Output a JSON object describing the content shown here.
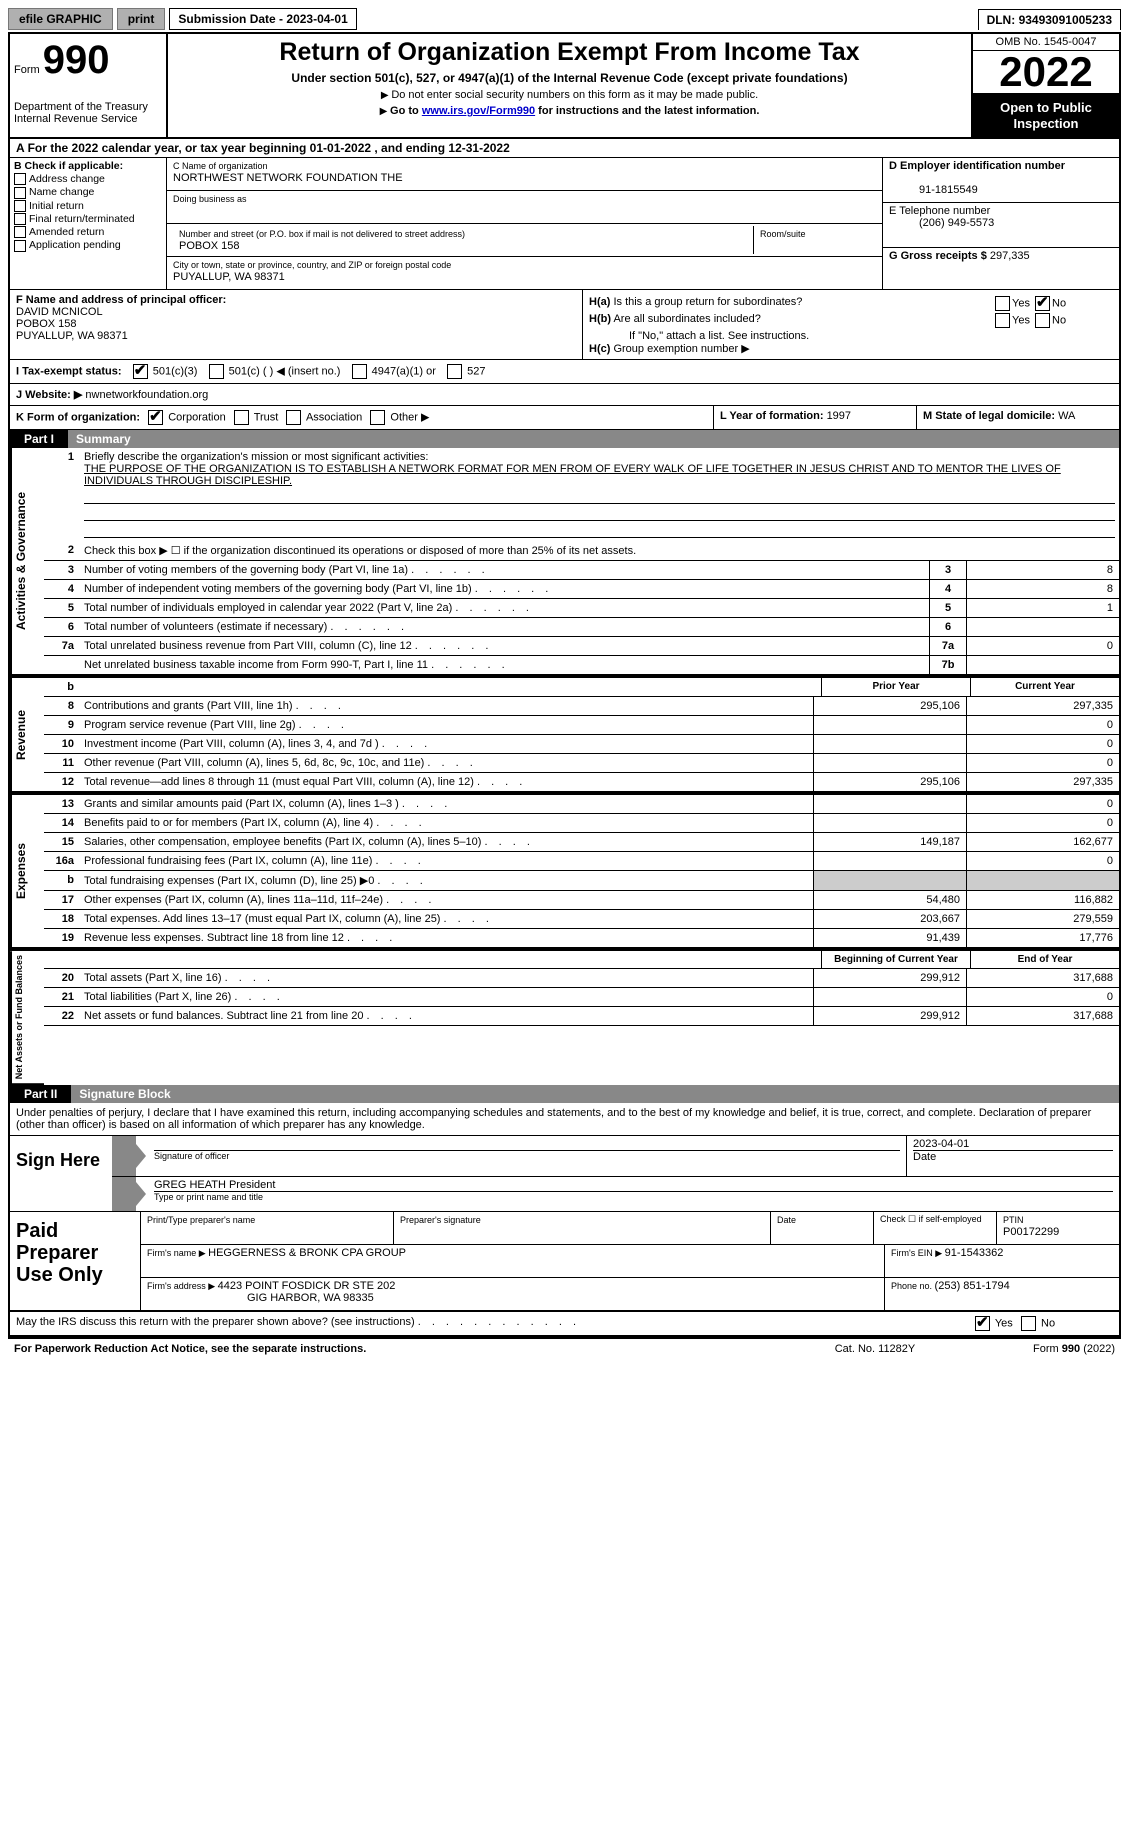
{
  "topbar": {
    "efile": "efile GRAPHIC",
    "print": "print",
    "subdate_label": "Submission Date - ",
    "subdate": "2023-04-01",
    "dln_label": "DLN: ",
    "dln": "93493091005233"
  },
  "header": {
    "form_word": "Form",
    "form_num": "990",
    "dept": "Department of the Treasury",
    "irs": "Internal Revenue Service",
    "title": "Return of Organization Exempt From Income Tax",
    "sub1": "Under section 501(c), 527, or 4947(a)(1) of the Internal Revenue Code (except private foundations)",
    "sub2": "Do not enter social security numbers on this form as it may be made public.",
    "sub3_pre": "Go to ",
    "sub3_link": "www.irs.gov/Form990",
    "sub3_post": " for instructions and the latest information.",
    "omb": "OMB No. 1545-0047",
    "year": "2022",
    "open": "Open to Public Inspection"
  },
  "line_a": "For the 2022 calendar year, or tax year beginning 01-01-2022    , and ending 12-31-2022",
  "box_b": {
    "head": "B Check if applicable:",
    "items": [
      "Address change",
      "Name change",
      "Initial return",
      "Final return/terminated",
      "Amended return",
      "Application pending"
    ]
  },
  "box_c": {
    "name_label": "C Name of organization",
    "name": "NORTHWEST NETWORK FOUNDATION THE",
    "dba_label": "Doing business as",
    "addr_label": "Number and street (or P.O. box if mail is not delivered to street address)",
    "addr": "POBOX 158",
    "room_label": "Room/suite",
    "city_label": "City or town, state or province, country, and ZIP or foreign postal code",
    "city": "PUYALLUP, WA  98371"
  },
  "box_de": {
    "d_label": "D Employer identification number",
    "d_val": "91-1815549",
    "e_label": "E Telephone number",
    "e_val": "(206) 949-5573",
    "g_label": "G Gross receipts $ ",
    "g_val": "297,335"
  },
  "box_f": {
    "label": "F  Name and address of principal officer:",
    "name": "DAVID MCNICOL",
    "addr1": "POBOX 158",
    "addr2": "PUYALLUP, WA  98371"
  },
  "box_h": {
    "ha": "Is this a group return for subordinates?",
    "hb": "Are all subordinates included?",
    "hb_note": "If \"No,\" attach a list. See instructions.",
    "hc": "Group exemption number ▶",
    "yes": "Yes",
    "no": "No"
  },
  "box_i": {
    "label": "I   Tax-exempt status:",
    "o1": "501(c)(3)",
    "o2": "501(c) (   ) ◀ (insert no.)",
    "o3": "4947(a)(1) or",
    "o4": "527"
  },
  "box_j": {
    "label": "J   Website: ▶ ",
    "val": "nwnetworkfoundation.org"
  },
  "box_k": {
    "label": "K Form of organization:",
    "o1": "Corporation",
    "o2": "Trust",
    "o3": "Association",
    "o4": "Other ▶"
  },
  "box_l": {
    "label": "L Year of formation: ",
    "val": "1997"
  },
  "box_m": {
    "label": "M State of legal domicile: ",
    "val": "WA"
  },
  "part1": {
    "num": "Part I",
    "title": "Summary"
  },
  "mission": {
    "label": "Briefly describe the organization's mission or most significant activities:",
    "text": "THE PURPOSE OF THE ORGANIZATION IS TO ESTABLISH A NETWORK FORMAT FOR MEN FROM OF EVERY WALK OF LIFE TOGETHER IN JESUS CHRIST AND TO MENTOR THE LIVES OF INDIVIDUALS THROUGH DISCIPLESHIP."
  },
  "lines_gov": [
    {
      "n": "2",
      "t": "Check this box ▶ ☐  if the organization discontinued its operations or disposed of more than 25% of its net assets."
    },
    {
      "n": "3",
      "t": "Number of voting members of the governing body (Part VI, line 1a)",
      "box": "3",
      "v": "8"
    },
    {
      "n": "4",
      "t": "Number of independent voting members of the governing body (Part VI, line 1b)",
      "box": "4",
      "v": "8"
    },
    {
      "n": "5",
      "t": "Total number of individuals employed in calendar year 2022 (Part V, line 2a)",
      "box": "5",
      "v": "1"
    },
    {
      "n": "6",
      "t": "Total number of volunteers (estimate if necessary)",
      "box": "6",
      "v": ""
    },
    {
      "n": "7a",
      "t": "Total unrelated business revenue from Part VIII, column (C), line 12",
      "box": "7a",
      "v": "0"
    },
    {
      "n": "",
      "t": "Net unrelated business taxable income from Form 990-T, Part I, line 11",
      "box": "7b",
      "v": ""
    }
  ],
  "col_head": {
    "b": "b",
    "prior": "Prior Year",
    "current": "Current Year"
  },
  "revenue": [
    {
      "n": "8",
      "t": "Contributions and grants (Part VIII, line 1h)",
      "p": "295,106",
      "c": "297,335"
    },
    {
      "n": "9",
      "t": "Program service revenue (Part VIII, line 2g)",
      "p": "",
      "c": "0"
    },
    {
      "n": "10",
      "t": "Investment income (Part VIII, column (A), lines 3, 4, and 7d )",
      "p": "",
      "c": "0"
    },
    {
      "n": "11",
      "t": "Other revenue (Part VIII, column (A), lines 5, 6d, 8c, 9c, 10c, and 11e)",
      "p": "",
      "c": "0"
    },
    {
      "n": "12",
      "t": "Total revenue—add lines 8 through 11 (must equal Part VIII, column (A), line 12)",
      "p": "295,106",
      "c": "297,335"
    }
  ],
  "expenses": [
    {
      "n": "13",
      "t": "Grants and similar amounts paid (Part IX, column (A), lines 1–3 )",
      "p": "",
      "c": "0"
    },
    {
      "n": "14",
      "t": "Benefits paid to or for members (Part IX, column (A), line 4)",
      "p": "",
      "c": "0"
    },
    {
      "n": "15",
      "t": "Salaries, other compensation, employee benefits (Part IX, column (A), lines 5–10)",
      "p": "149,187",
      "c": "162,677"
    },
    {
      "n": "16a",
      "t": "Professional fundraising fees (Part IX, column (A), line 11e)",
      "p": "",
      "c": "0"
    },
    {
      "n": "b",
      "t": "Total fundraising expenses (Part IX, column (D), line 25) ▶0",
      "p": "grey",
      "c": "grey",
      "noval": true
    },
    {
      "n": "17",
      "t": "Other expenses (Part IX, column (A), lines 11a–11d, 11f–24e)",
      "p": "54,480",
      "c": "116,882"
    },
    {
      "n": "18",
      "t": "Total expenses. Add lines 13–17 (must equal Part IX, column (A), line 25)",
      "p": "203,667",
      "c": "279,559"
    },
    {
      "n": "19",
      "t": "Revenue less expenses. Subtract line 18 from line 12",
      "p": "91,439",
      "c": "17,776"
    }
  ],
  "netassets_head": {
    "begin": "Beginning of Current Year",
    "end": "End of Year"
  },
  "netassets": [
    {
      "n": "20",
      "t": "Total assets (Part X, line 16)",
      "p": "299,912",
      "c": "317,688"
    },
    {
      "n": "21",
      "t": "Total liabilities (Part X, line 26)",
      "p": "",
      "c": "0"
    },
    {
      "n": "22",
      "t": "Net assets or fund balances. Subtract line 21 from line 20",
      "p": "299,912",
      "c": "317,688"
    }
  ],
  "vtabs": {
    "gov": "Activities & Governance",
    "rev": "Revenue",
    "exp": "Expenses",
    "net": "Net Assets or Fund Balances"
  },
  "part2": {
    "num": "Part II",
    "title": "Signature Block"
  },
  "sig": {
    "penalty": "Under penalties of perjury, I declare that I have examined this return, including accompanying schedules and statements, and to the best of my knowledge and belief, it is true, correct, and complete. Declaration of preparer (other than officer) is based on all information of which preparer has any knowledge.",
    "signhere": "Sign Here",
    "sig_label": "Signature of officer",
    "date_label": "Date",
    "date_val": "2023-04-01",
    "name": "GREG HEATH  President",
    "name_label": "Type or print name and title"
  },
  "prep": {
    "title": "Paid Preparer Use Only",
    "h1": "Print/Type preparer's name",
    "h2": "Preparer's signature",
    "h3": "Date",
    "h4": "Check ☐  if self-employed",
    "h5_label": "PTIN",
    "h5": "P00172299",
    "firm_label": "Firm's name     ▶ ",
    "firm": "HEGGERNESS & BRONK CPA GROUP",
    "ein_label": "Firm's EIN ▶ ",
    "ein": "91-1543362",
    "addr_label": "Firm's address ▶ ",
    "addr1": "4423 POINT FOSDICK DR STE 202",
    "addr2": "GIG HARBOR, WA  98335",
    "phone_label": "Phone no. ",
    "phone": "(253) 851-1794"
  },
  "discuss": "May the IRS discuss this return with the preparer shown above? (see instructions)",
  "footer": {
    "pra": "For Paperwork Reduction Act Notice, see the separate instructions.",
    "cat": "Cat. No. 11282Y",
    "form": "Form 990 (2022)"
  }
}
